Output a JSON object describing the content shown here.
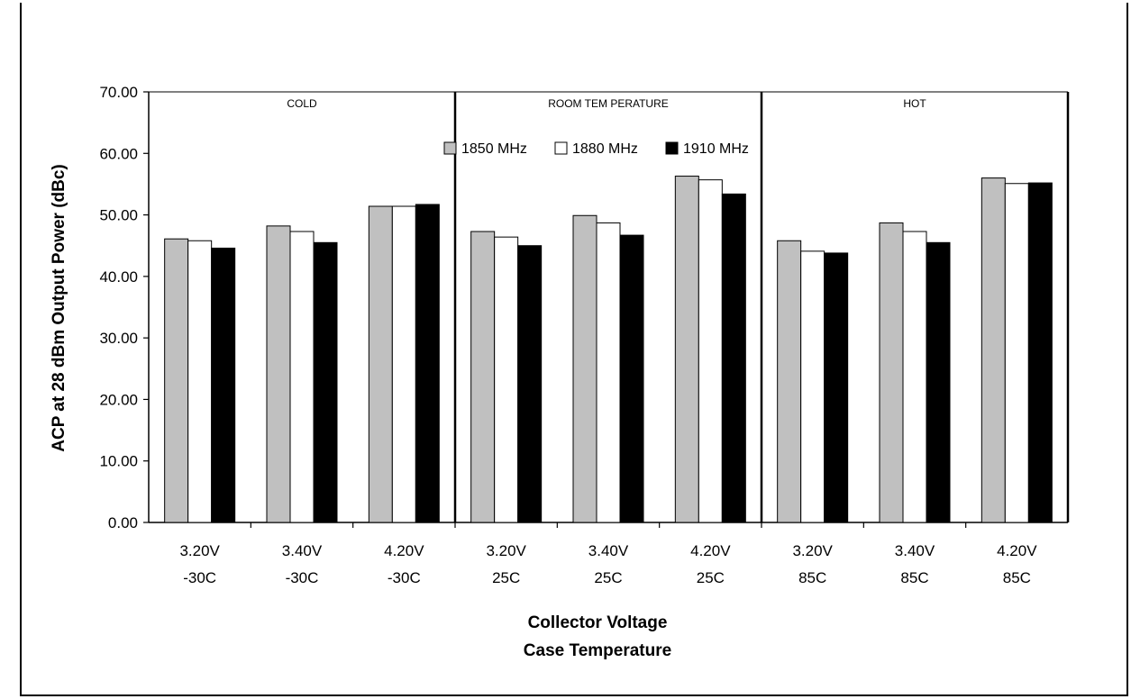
{
  "chart_data": {
    "type": "bar",
    "title": "",
    "ylabel": "ACP at 28 dBm Output Power (dBc)",
    "xlabel_lines": [
      "Collector Voltage",
      "Case Temperature"
    ],
    "ylim": [
      0,
      70
    ],
    "yticks": [
      "0.00",
      "10.00",
      "20.00",
      "30.00",
      "40.00",
      "50.00",
      "60.00",
      "70.00"
    ],
    "categories": [
      [
        "3.20V",
        "-30C"
      ],
      [
        "3.40V",
        "-30C"
      ],
      [
        "4.20V",
        "-30C"
      ],
      [
        "3.20V",
        "25C"
      ],
      [
        "3.40V",
        "25C"
      ],
      [
        "4.20V",
        "25C"
      ],
      [
        "3.20V",
        "85C"
      ],
      [
        "3.40V",
        "85C"
      ],
      [
        "4.20V",
        "85C"
      ]
    ],
    "series": [
      {
        "name": "1850 MHz",
        "color": "#c0c0c0",
        "values": [
          46.1,
          48.2,
          51.4,
          47.3,
          49.9,
          56.3,
          45.8,
          48.7,
          56.0
        ]
      },
      {
        "name": "1880 MHz",
        "color": "#ffffff",
        "values": [
          45.8,
          47.3,
          51.4,
          46.4,
          48.7,
          55.7,
          44.1,
          47.3,
          55.1
        ]
      },
      {
        "name": "1910 MHz",
        "color": "#000000",
        "values": [
          44.6,
          45.5,
          51.7,
          45.0,
          46.7,
          53.4,
          43.8,
          45.5,
          55.2
        ]
      }
    ],
    "segments": [
      "COLD",
      "ROOM TEM PERATURE",
      "HOT"
    ],
    "legend_position": "top-center",
    "grid": false
  }
}
